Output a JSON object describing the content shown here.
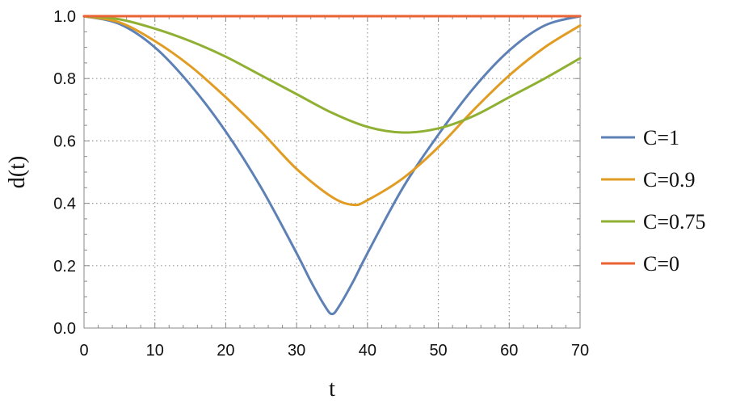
{
  "chart_data": {
    "type": "line",
    "title": "",
    "xlabel": "t",
    "ylabel": "d(t)",
    "xlim": [
      0,
      70
    ],
    "ylim": [
      0,
      1
    ],
    "xticks": [
      0,
      10,
      20,
      30,
      40,
      50,
      60,
      70
    ],
    "yticks": [
      0.0,
      0.2,
      0.4,
      0.6,
      0.8,
      1.0
    ],
    "ytick_labels": [
      "0.0",
      "0.2",
      "0.4",
      "0.6",
      "0.8",
      "1.0"
    ],
    "grid": true,
    "legend_position": "right",
    "series": [
      {
        "name": "C=1",
        "color": "#5E81B5",
        "x": [
          0,
          5,
          10,
          15,
          20,
          25,
          30,
          32,
          34,
          35,
          36,
          38,
          40,
          45,
          50,
          55,
          60,
          65,
          70
        ],
        "y": [
          1.0,
          0.975,
          0.9,
          0.78,
          0.63,
          0.45,
          0.24,
          0.15,
          0.07,
          0.045,
          0.07,
          0.15,
          0.24,
          0.45,
          0.62,
          0.77,
          0.89,
          0.97,
          1.0
        ]
      },
      {
        "name": "C=0.9",
        "color": "#E19C24",
        "x": [
          0,
          5,
          10,
          15,
          20,
          25,
          30,
          35,
          38,
          40,
          45,
          50,
          55,
          60,
          65,
          70
        ],
        "y": [
          1.0,
          0.98,
          0.92,
          0.84,
          0.74,
          0.63,
          0.51,
          0.42,
          0.395,
          0.41,
          0.48,
          0.58,
          0.7,
          0.81,
          0.9,
          0.97
        ]
      },
      {
        "name": "C=0.75",
        "color": "#8FB032",
        "x": [
          0,
          5,
          10,
          15,
          20,
          25,
          30,
          35,
          40,
          45,
          50,
          55,
          60,
          65,
          70
        ],
        "y": [
          1.0,
          0.99,
          0.96,
          0.92,
          0.87,
          0.81,
          0.75,
          0.69,
          0.645,
          0.627,
          0.64,
          0.68,
          0.74,
          0.8,
          0.865
        ]
      },
      {
        "name": "C=0",
        "color": "#EB6235",
        "x": [
          0,
          70
        ],
        "y": [
          1.0,
          1.0
        ]
      }
    ]
  }
}
